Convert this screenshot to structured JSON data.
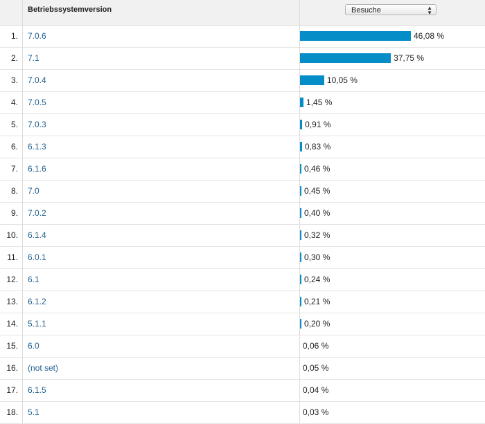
{
  "header": {
    "dimension_label": "Betriebssystemversion",
    "metric_selected": "Besuche"
  },
  "chart_data": {
    "type": "bar",
    "categories": [
      "7.0.6",
      "7.1",
      "7.0.4",
      "7.0.5",
      "7.0.3",
      "6.1.3",
      "6.1.6",
      "7.0",
      "7.0.2",
      "6.1.4",
      "6.0.1",
      "6.1",
      "6.1.2",
      "5.1.1",
      "6.0",
      "(not set)",
      "6.1.5",
      "5.1"
    ],
    "values": [
      46.08,
      37.75,
      10.05,
      1.45,
      0.91,
      0.83,
      0.46,
      0.45,
      0.4,
      0.32,
      0.3,
      0.24,
      0.21,
      0.2,
      0.06,
      0.05,
      0.04,
      0.03
    ],
    "xlabel": "Betriebssystemversion",
    "ylabel": "Besuche"
  },
  "rows": [
    {
      "index": "1.",
      "label": "7.0.6",
      "pct": "46,08 %"
    },
    {
      "index": "2.",
      "label": "7.1",
      "pct": "37,75 %"
    },
    {
      "index": "3.",
      "label": "7.0.4",
      "pct": "10,05 %"
    },
    {
      "index": "4.",
      "label": "7.0.5",
      "pct": "1,45 %"
    },
    {
      "index": "5.",
      "label": "7.0.3",
      "pct": "0,91 %"
    },
    {
      "index": "6.",
      "label": "6.1.3",
      "pct": "0,83 %"
    },
    {
      "index": "7.",
      "label": "6.1.6",
      "pct": "0,46 %"
    },
    {
      "index": "8.",
      "label": "7.0",
      "pct": "0,45 %"
    },
    {
      "index": "9.",
      "label": "7.0.2",
      "pct": "0,40 %"
    },
    {
      "index": "10.",
      "label": "6.1.4",
      "pct": "0,32 %"
    },
    {
      "index": "11.",
      "label": "6.0.1",
      "pct": "0,30 %"
    },
    {
      "index": "12.",
      "label": "6.1",
      "pct": "0,24 %"
    },
    {
      "index": "13.",
      "label": "6.1.2",
      "pct": "0,21 %"
    },
    {
      "index": "14.",
      "label": "5.1.1",
      "pct": "0,20 %"
    },
    {
      "index": "15.",
      "label": "6.0",
      "pct": "0,06 %"
    },
    {
      "index": "16.",
      "label": "(not set)",
      "pct": "0,05 %"
    },
    {
      "index": "17.",
      "label": "6.1.5",
      "pct": "0,04 %"
    },
    {
      "index": "18.",
      "label": "5.1",
      "pct": "0,03 %"
    }
  ],
  "colors": {
    "bar": "#058dc7",
    "link": "#1f5f8f"
  },
  "icons": {
    "select_arrows": "updown-arrows-icon"
  }
}
